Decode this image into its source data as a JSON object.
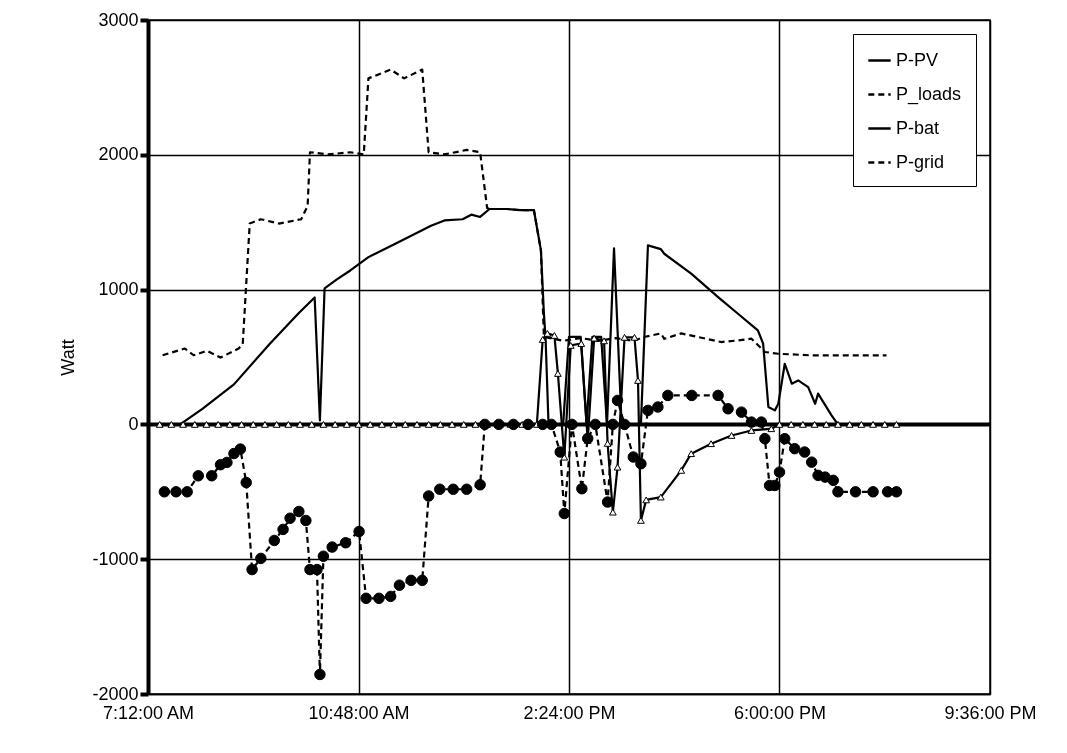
{
  "chart_data": {
    "type": "line",
    "ylabel": "Watt",
    "xlim": [
      7.2,
      21.6
    ],
    "xticks": [
      {
        "value": 7.2,
        "label": "7:12:00 AM"
      },
      {
        "value": 10.8,
        "label": "10:48:00 AM"
      },
      {
        "value": 14.4,
        "label": "2:24:00 PM"
      },
      {
        "value": 18.0,
        "label": "6:00:00 PM"
      },
      {
        "value": 21.6,
        "label": "9:36:00 PM"
      }
    ],
    "ylim": [
      -2000,
      3000
    ],
    "yticks": [
      -2000,
      -1000,
      0,
      1000,
      2000,
      3000
    ],
    "grid": true,
    "legend": "top right",
    "series": [
      {
        "name": "P-PV",
        "color": "#000000",
        "marker": "none",
        "line_style": "solid",
        "x": [
          7.4,
          7.75,
          8.13,
          8.67,
          9.28,
          9.78,
          10.05,
          10.14,
          10.22,
          10.43,
          10.66,
          10.97,
          11.43,
          12.04,
          12.27,
          12.58,
          12.73,
          12.88,
          13.04,
          13.34,
          13.57,
          13.8,
          13.92,
          13.97,
          14.0,
          14.05,
          14.3,
          14.4,
          14.6,
          14.7,
          14.8,
          14.95,
          15.05,
          15.17,
          15.3,
          15.5,
          15.63,
          15.75,
          15.97,
          16.03,
          16.49,
          16.95,
          17.29,
          17.63,
          17.72,
          17.81,
          17.92,
          17.98,
          18.09,
          18.21,
          18.32,
          18.49,
          18.61,
          18.66,
          18.89,
          18.95,
          19.0
        ],
        "values": [
          0,
          0,
          115,
          297,
          596,
          827,
          942,
          30,
          1009,
          1076,
          1142,
          1241,
          1340,
          1473,
          1513,
          1522,
          1556,
          1539,
          1598,
          1598,
          1589,
          1589,
          1291,
          827,
          631,
          0,
          0,
          650,
          650,
          0,
          650,
          650,
          0,
          1306,
          0,
          0,
          0,
          1328,
          1300,
          1266,
          1118,
          944,
          821,
          697,
          599,
          129,
          104,
          153,
          450,
          302,
          326,
          277,
          153,
          228,
          67,
          30,
          0
        ]
      },
      {
        "name": "P_loads",
        "color": "#000000",
        "marker": "none",
        "line_style": "dashed",
        "x": [
          7.45,
          7.83,
          7.98,
          8.21,
          8.44,
          8.75,
          8.82,
          8.94,
          9.13,
          9.44,
          9.82,
          9.93,
          9.97,
          10.28,
          10.66,
          10.89,
          10.97,
          11.35,
          11.58,
          11.89,
          12.0,
          12.27,
          12.65,
          12.88,
          13.0,
          13.04,
          13.34,
          13.57,
          13.8,
          13.92,
          13.97,
          14.3,
          14.6,
          14.9,
          15.2,
          15.5,
          15.7,
          15.97,
          16.03,
          16.32,
          16.61,
          17.0,
          17.29,
          17.52,
          17.75,
          17.98,
          18.55,
          19.23,
          19.83
        ],
        "values": [
          513,
          563,
          513,
          546,
          496,
          563,
          595,
          1490,
          1522,
          1490,
          1522,
          1621,
          2019,
          2003,
          2019,
          2003,
          2567,
          2632,
          2567,
          2632,
          2019,
          2003,
          2036,
          2019,
          1605,
          1598,
          1598,
          1589,
          1589,
          1291,
          650,
          620,
          640,
          620,
          640,
          620,
          650,
          675,
          635,
          675,
          648,
          611,
          623,
          636,
          537,
          524,
          512,
          512,
          512
        ]
      },
      {
        "name": "P-bat",
        "color": "#000000",
        "marker": "triangle",
        "line_style": "solid",
        "x": [
          7.4,
          7.6,
          7.8,
          8.0,
          8.2,
          8.4,
          8.6,
          8.8,
          9.0,
          9.2,
          9.4,
          9.6,
          9.8,
          10.0,
          10.2,
          10.4,
          10.6,
          10.8,
          11.0,
          11.2,
          11.4,
          11.6,
          11.8,
          12.0,
          12.2,
          12.4,
          12.6,
          12.8,
          13.0,
          13.2,
          13.4,
          13.6,
          13.85,
          13.95,
          14.03,
          14.15,
          14.21,
          14.32,
          14.43,
          14.61,
          14.72,
          14.83,
          15.0,
          15.06,
          15.15,
          15.23,
          15.35,
          15.52,
          15.58,
          15.63,
          15.72,
          15.97,
          16.32,
          16.49,
          16.83,
          17.18,
          17.52,
          17.86,
          18.0,
          18.2,
          18.4,
          18.6,
          18.8,
          19.0,
          19.2,
          19.4,
          19.6,
          19.8,
          20.0
        ],
        "values": [
          0,
          0,
          0,
          0,
          0,
          0,
          0,
          0,
          0,
          0,
          0,
          0,
          0,
          0,
          0,
          0,
          0,
          0,
          0,
          0,
          0,
          0,
          0,
          0,
          0,
          0,
          0,
          0,
          0,
          0,
          0,
          0,
          0,
          630,
          675,
          660,
          378,
          -243,
          586,
          600,
          -119,
          640,
          620,
          -141,
          -651,
          -317,
          646,
          646,
          326,
          -712,
          -560,
          -539,
          -341,
          -217,
          -143,
          -82,
          -45,
          -32,
          0,
          0,
          0,
          0,
          0,
          0,
          0,
          0,
          0,
          0,
          0
        ]
      },
      {
        "name": "P-grid",
        "color": "#000000",
        "marker": "circle",
        "line_style": "dashed",
        "x": [
          7.48,
          7.68,
          7.87,
          8.06,
          8.29,
          8.44,
          8.55,
          8.67,
          8.78,
          8.88,
          8.98,
          9.13,
          9.36,
          9.51,
          9.63,
          9.78,
          9.9,
          9.97,
          10.09,
          10.14,
          10.2,
          10.35,
          10.58,
          10.81,
          10.93,
          11.15,
          11.35,
          11.5,
          11.7,
          11.89,
          12.0,
          12.19,
          12.42,
          12.65,
          12.88,
          12.96,
          13.2,
          13.45,
          13.7,
          13.95,
          14.1,
          14.25,
          14.32,
          14.45,
          14.62,
          14.72,
          14.85,
          15.06,
          15.15,
          15.23,
          15.35,
          15.5,
          15.63,
          15.75,
          15.92,
          16.09,
          16.5,
          16.95,
          17.12,
          17.35,
          17.52,
          17.69,
          17.75,
          17.83,
          17.92,
          18.0,
          18.09,
          18.26,
          18.43,
          18.55,
          18.66,
          18.78,
          18.92,
          19.0,
          19.3,
          19.6,
          19.85,
          20.0
        ],
        "values": [
          -500,
          -500,
          -500,
          -381,
          -381,
          -299,
          -282,
          -216,
          -183,
          -431,
          -1077,
          -994,
          -861,
          -779,
          -696,
          -646,
          -713,
          -1077,
          -1077,
          -1855,
          -978,
          -910,
          -878,
          -795,
          -1290,
          -1290,
          -1276,
          -1193,
          -1157,
          -1157,
          -531,
          -481,
          -481,
          -481,
          -448,
          0,
          0,
          0,
          0,
          0,
          0,
          -205,
          -661,
          0,
          -477,
          -104,
          0,
          -576,
          0,
          178,
          0,
          -242,
          -292,
          104,
          129,
          215,
          215,
          215,
          116,
          91,
          17,
          17,
          -106,
          -453,
          -453,
          -354,
          -106,
          -180,
          -205,
          -280,
          -378,
          -391,
          -415,
          -500,
          -500,
          -500,
          -500,
          -500
        ]
      }
    ]
  }
}
